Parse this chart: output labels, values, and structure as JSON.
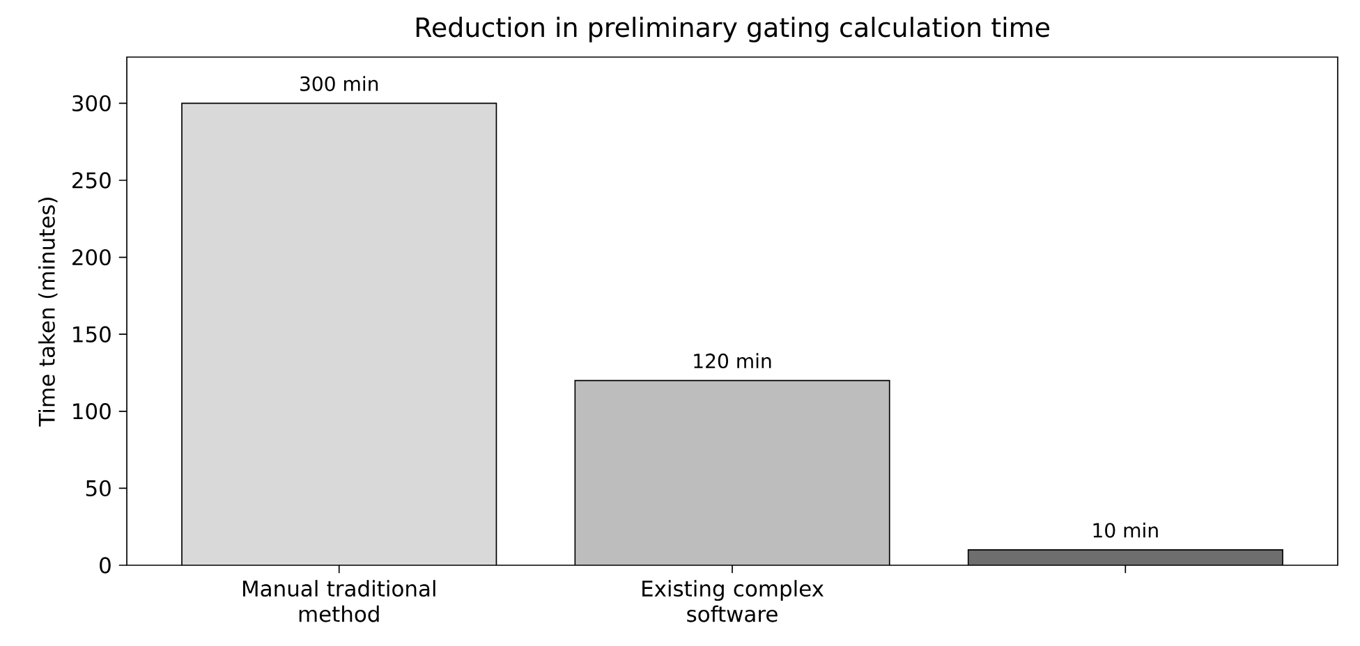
{
  "chart_data": {
    "type": "bar",
    "title": "Reduction in preliminary gating calculation time",
    "ylabel": "Time taken (minutes)",
    "categories": [
      "Manual traditional method",
      "Existing complex software",
      null
    ],
    "values": [
      300,
      120,
      10
    ],
    "colors": [
      "#d9d9d9",
      "#bdbdbd",
      "#6e6e6e"
    ],
    "value_labels": [
      "300 min",
      "120 min",
      "10 min"
    ],
    "ylim": [
      0,
      330
    ],
    "yticks": [
      0,
      50,
      100,
      150,
      200,
      250,
      300
    ]
  }
}
